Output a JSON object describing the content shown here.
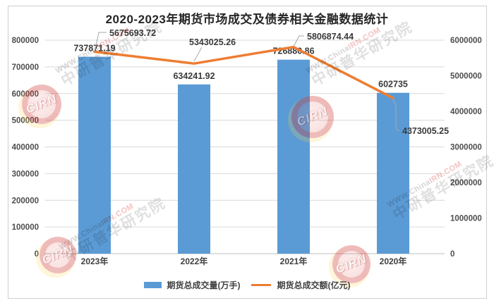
{
  "title": "2020-2023年期货市场成交及债券相关金融数据统计",
  "chart_data": {
    "type": "bar",
    "subtype": "combo bar+line, dual axis",
    "categories": [
      "2023年",
      "2022年",
      "2021年",
      "2020年"
    ],
    "series": [
      {
        "name": "期货总成交量(万手)",
        "type": "bar",
        "axis": "left",
        "color": "#5B9BD5",
        "values": [
          737871.19,
          634241.92,
          726880.86,
          602735
        ],
        "labels": [
          "737871.19",
          "634241.92",
          "726880.86",
          "602735"
        ]
      },
      {
        "name": "期货总成交额(亿元)",
        "type": "line",
        "axis": "right",
        "color": "#ED7D31",
        "values": [
          5675693.72,
          5343025.26,
          5806874.44,
          4373005.25
        ],
        "labels": [
          "5675693.72",
          "5343025.26",
          "5806874.44",
          "4373005.25"
        ]
      }
    ],
    "left_axis": {
      "min": 0,
      "max": 800000,
      "step": 100000,
      "ticks": [
        "800000",
        "700000",
        "600000",
        "500000",
        "400000",
        "300000",
        "200000",
        "100000",
        "0"
      ]
    },
    "right_axis": {
      "min": 0,
      "max": 6000000,
      "step": 1000000,
      "ticks": [
        "6000000",
        "5000000",
        "4000000",
        "3000000",
        "2000000",
        "1000000",
        "0"
      ]
    },
    "grid": "horizontal",
    "legend_position": "bottom",
    "title": "2020-2023年期货市场成交及债券相关金融数据统计"
  },
  "legend": {
    "items": [
      {
        "label": "期货总成交量(万手)",
        "swatch": "bar",
        "color": "#5B9BD5"
      },
      {
        "label": "期货总成交额(亿元)",
        "swatch": "line",
        "color": "#ED7D31"
      }
    ]
  },
  "watermark": {
    "url_gray": "WWW.China",
    "url_red": "IRN.COM",
    "org": "中研普华研究院",
    "logo_text": "CIRN"
  },
  "colors": {
    "bar": "#5B9BD5",
    "line": "#ED7D31",
    "grid": "#d9d9d9",
    "axis_line": "#bfbfbf",
    "data_label": "#3a3a3a",
    "tick_label": "#4d4d4d",
    "leader": "#a6a6a6"
  }
}
